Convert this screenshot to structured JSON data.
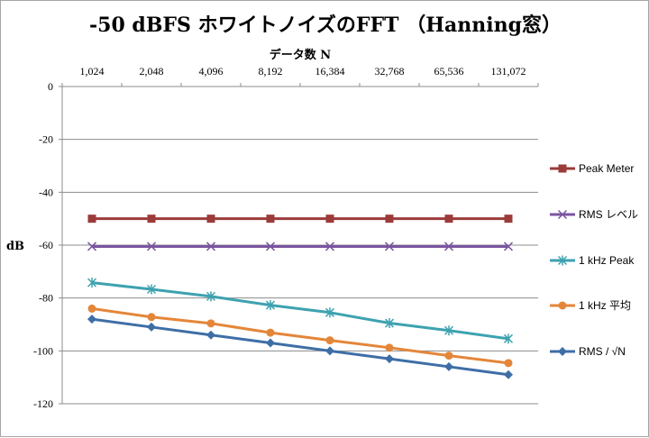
{
  "chart_data": {
    "type": "line",
    "title": "-50 dBFS ホワイトノイズのFFT （Hanning窓）",
    "xlabel": "データ数 N",
    "ylabel": "dB",
    "categories": [
      "1,024",
      "2,048",
      "4,096",
      "8,192",
      "16,384",
      "32,768",
      "65,536",
      "131,072"
    ],
    "ylim": [
      -120,
      0
    ],
    "yticks": [
      0,
      -20,
      -40,
      -60,
      -80,
      -100,
      -120
    ],
    "grid": "horizontal",
    "legend_position": "right",
    "series": [
      {
        "name": "Peak Meter",
        "color": "#9b3b3a",
        "marker": "square",
        "values": [
          -50,
          -50,
          -50,
          -50,
          -50,
          -50,
          -50,
          -50
        ]
      },
      {
        "name": "RMS レベル",
        "color": "#7a55a0",
        "marker": "x",
        "values": [
          -60.5,
          -60.5,
          -60.5,
          -60.5,
          -60.5,
          -60.5,
          -60.5,
          -60.5
        ]
      },
      {
        "name": "1 kHz  Peak",
        "color": "#3ea2b0",
        "marker": "star",
        "values": [
          -74.2,
          -76.7,
          -79.4,
          -82.7,
          -85.5,
          -89.5,
          -92.3,
          -95.4
        ]
      },
      {
        "name": "1 kHz  平均",
        "color": "#e4863a",
        "marker": "circle",
        "values": [
          -84,
          -87.2,
          -89.6,
          -93.1,
          -96,
          -98.8,
          -101.8,
          -104.6
        ]
      },
      {
        "name": "RMS / √N",
        "color": "#3e6ea6",
        "marker": "diamond",
        "values": [
          -88,
          -91,
          -94,
          -97,
          -100,
          -103,
          -106,
          -109
        ]
      }
    ]
  }
}
